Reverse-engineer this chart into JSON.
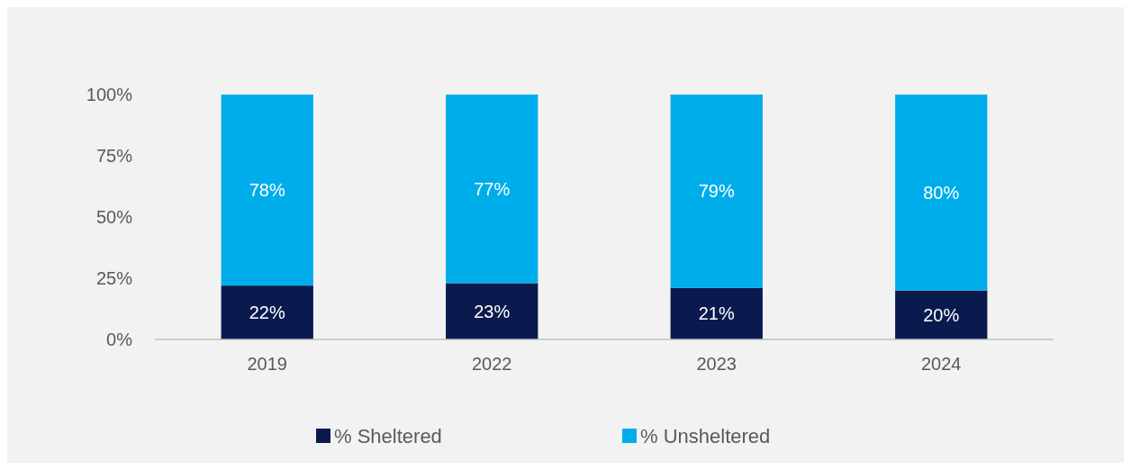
{
  "chart_data": {
    "type": "bar",
    "stacked": true,
    "categories": [
      "2019",
      "2022",
      "2023",
      "2024"
    ],
    "series": [
      {
        "name": "% Sheltered",
        "color": "#0b1a4e",
        "values": [
          22,
          23,
          21,
          20
        ],
        "value_labels": [
          "22%",
          "23%",
          "21%",
          "20%"
        ]
      },
      {
        "name": "% Unsheltered",
        "color": "#00adeb",
        "values": [
          78,
          77,
          79,
          80
        ],
        "value_labels": [
          "78%",
          "77%",
          "79%",
          "80%"
        ]
      }
    ],
    "ylim": [
      0,
      100
    ],
    "yticks": [
      {
        "value": 0,
        "label": "0%"
      },
      {
        "value": 25,
        "label": "25%"
      },
      {
        "value": 50,
        "label": "50%"
      },
      {
        "value": 75,
        "label": "75%"
      },
      {
        "value": 100,
        "label": "100%"
      }
    ],
    "legend": "bottom"
  }
}
